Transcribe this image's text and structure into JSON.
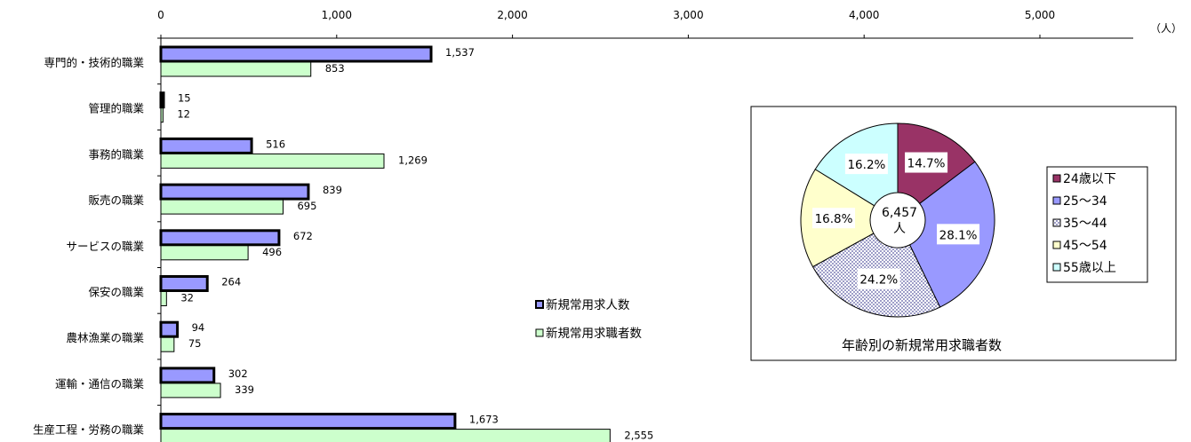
{
  "chart_data": [
    {
      "type": "bar",
      "orientation": "horizontal",
      "unit_label": "（人）",
      "xlim": [
        0,
        5600
      ],
      "x_ticks": [
        "0",
        "1,000",
        "2,000",
        "3,000",
        "4,000",
        "5,000"
      ],
      "x_tick_values": [
        0,
        1000,
        2000,
        3000,
        4000,
        5000
      ],
      "categories": [
        "専門的・技術的職業",
        "管理的職業",
        "事務的職業",
        "販売の職業",
        "サービスの職業",
        "保安の職業",
        "農林漁業の職業",
        "運輸・通信の職業",
        "生産工程・労務の職業"
      ],
      "series": [
        {
          "name": "新規常用求人数",
          "color": "#9999ff",
          "values": [
            1537,
            15,
            516,
            839,
            672,
            264,
            94,
            302,
            1673
          ],
          "labels": [
            "1,537",
            "15",
            "516",
            "839",
            "672",
            "264",
            "94",
            "302",
            "1,673"
          ]
        },
        {
          "name": "新規常用求職者数",
          "color": "#ccffcc",
          "values": [
            853,
            12,
            1269,
            695,
            496,
            32,
            75,
            339,
            2555
          ],
          "labels": [
            "853",
            "12",
            "1,269",
            "695",
            "496",
            "32",
            "75",
            "339",
            "2,555"
          ]
        }
      ],
      "legend_position": "right"
    },
    {
      "type": "pie",
      "style": "doughnut",
      "title": "年齢別の新規常用求職者数",
      "center_label": [
        "6,457",
        "人"
      ],
      "categories": [
        "24歳以下",
        "25～34",
        "35～44",
        "45～54",
        "55歳以上"
      ],
      "values": [
        14.7,
        28.1,
        24.2,
        16.8,
        16.2
      ],
      "labels": [
        "14.7%",
        "28.1%",
        "24.2%",
        "16.8%",
        "16.2%"
      ],
      "colors": [
        "#993366",
        "#9999ff",
        "#ffffff",
        "#ffffcc",
        "#ccffff"
      ],
      "legend_position": "right"
    }
  ]
}
